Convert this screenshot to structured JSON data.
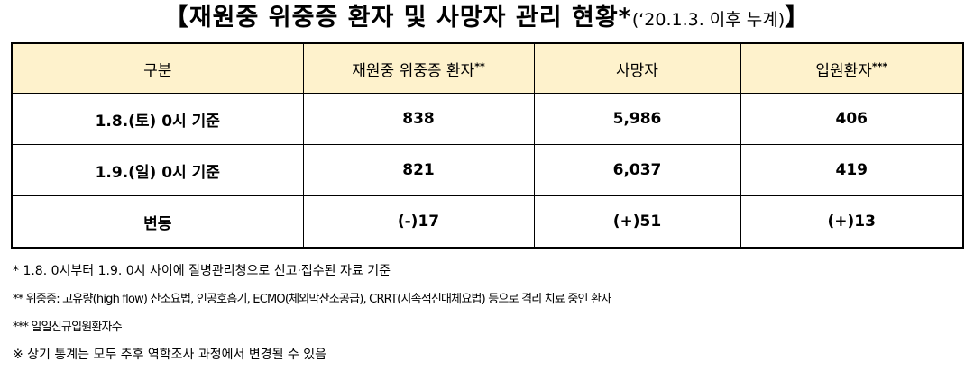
{
  "header": {
    "title": {
      "open": "【",
      "main": "재원중  위중증 환자 및 사망자 관리 현황*",
      "note": "(‘20.1.3. 이후 누계)",
      "close": "】"
    }
  },
  "table": {
    "columns": [
      {
        "text": "구분",
        "sup": null
      },
      {
        "text": "재원중 위중증 환자",
        "sup": "**"
      },
      {
        "text": "사망자",
        "sup": null
      },
      {
        "text": "입원환자",
        "sup": "***"
      }
    ],
    "rows": [
      [
        "1.8.(토) 0시 기준",
        "838",
        "5,986",
        "406"
      ],
      [
        "1.9.(일) 0시 기준",
        "821",
        "6,037",
        "419"
      ],
      [
        "변동",
        "(-)17",
        "(+)51",
        "(+)13"
      ]
    ]
  },
  "footnotes": [
    "*  1.8. 0시부터 1.9. 0시 사이에 질병관리청으로 신고·접수된 자료 기준",
    "** 위중증: 고유량(high flow) 산소요법, 인공호흡기, ECMO(체외막산소공급), CRRT(지속적신대체요법) 등으로 격리 치료 중인 환자",
    "*** 일일신규입원환자수",
    "※ 상기 통계는 모두 추후 역학조사 과정에서 변경될 수 있음"
  ]
}
